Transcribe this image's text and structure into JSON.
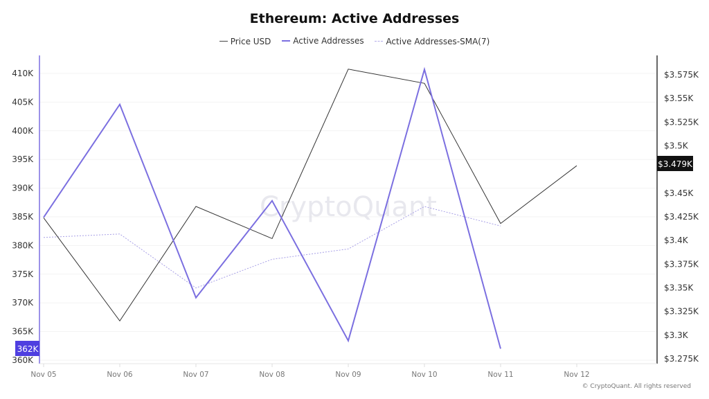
{
  "header": {
    "title": "Ethereum: Active Addresses"
  },
  "legend": [
    {
      "label": "Price USD",
      "color": "#444444",
      "style": "solid"
    },
    {
      "label": "Active Addresses",
      "color": "#7b6fe0",
      "style": "solid"
    },
    {
      "label": "Active Addresses-SMA(7)",
      "color": "#b3abe8",
      "style": "dashed"
    }
  ],
  "badges": {
    "left_current": "362K",
    "right_current": "$3.479K",
    "left_color": "#4f3fe0",
    "right_color": "#111111"
  },
  "watermark": "CryptoQuant",
  "footer": {
    "copyright": "© CryptoQuant. All rights reserved"
  },
  "chart_data": {
    "type": "line",
    "title": "Ethereum: Active Addresses",
    "xlabel": "",
    "ylabel": "Active Addresses",
    "y2label": "Price USD",
    "categories": [
      "Nov 05",
      "Nov 06",
      "Nov 07",
      "Nov 08",
      "Nov 09",
      "Nov 10",
      "Nov 11",
      "Nov 12"
    ],
    "series": [
      {
        "name": "Price USD",
        "axis": "right",
        "color": "#444444",
        "values": [
          3424,
          3315,
          3436,
          3402,
          3581,
          3566,
          3418,
          3479
        ]
      },
      {
        "name": "Active Addresses",
        "axis": "left",
        "color": "#7b6fe0",
        "values": [
          384900,
          404600,
          370900,
          387800,
          363400,
          410700,
          362000,
          null
        ]
      },
      {
        "name": "Active Addresses-SMA(7)",
        "axis": "left",
        "color": "#b3abe8",
        "values": [
          381400,
          382000,
          372600,
          377600,
          379400,
          386800,
          383400,
          null
        ]
      }
    ],
    "left_axis": {
      "ticks": [
        "360K",
        "365K",
        "370K",
        "375K",
        "380K",
        "385K",
        "390K",
        "395K",
        "400K",
        "405K",
        "410K"
      ],
      "ylim": [
        360000,
        413000
      ]
    },
    "right_axis": {
      "ticks": [
        "$3.275K",
        "$3.3K",
        "$3.325K",
        "$3.35K",
        "$3.375K",
        "$3.4K",
        "$3.425K",
        "$3.45K",
        "$3.5K",
        "$3.525K",
        "$3.55K",
        "$3.575K"
      ],
      "ylim": [
        3265,
        3595
      ]
    },
    "grid": true,
    "legend_position": "top"
  }
}
